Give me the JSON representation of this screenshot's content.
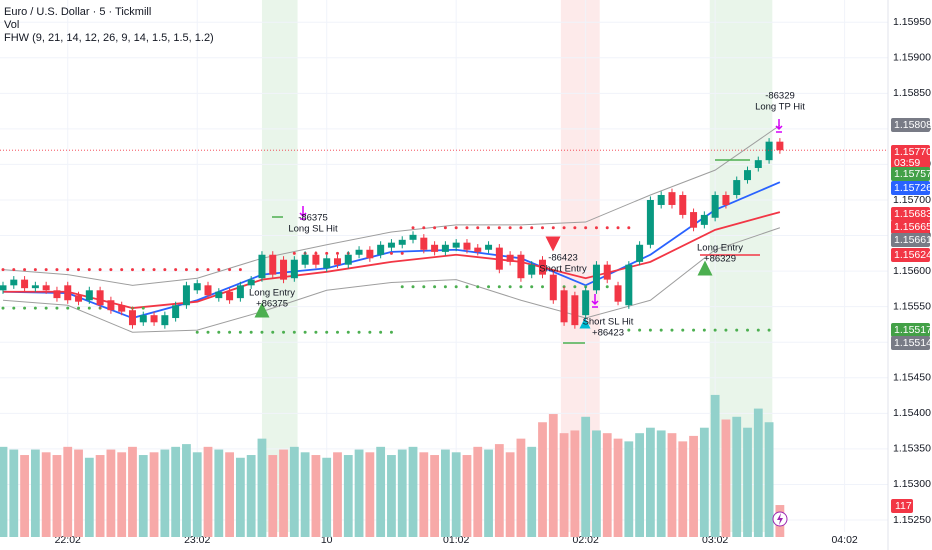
{
  "header": {
    "symbol": "Euro / U.S. Dollar · 5 · Tickmill",
    "volume_indicator": "Vol",
    "indicator": "FHW (9, 21, 14, 12, 26, 9, 14, 1.5, 1.5, 1.2)"
  },
  "chart_data": {
    "type": "candlestick",
    "categories": [
      null,
      null,
      null,
      null,
      null,
      null,
      "22:02",
      null,
      null,
      null,
      null,
      null,
      null,
      null,
      null,
      null,
      null,
      null,
      "23:02",
      null,
      null,
      null,
      null,
      null,
      null,
      null,
      null,
      null,
      null,
      null,
      "10",
      null,
      null,
      null,
      null,
      null,
      null,
      null,
      null,
      null,
      null,
      null,
      "01:02",
      null,
      null,
      null,
      null,
      null,
      null,
      null,
      null,
      null,
      null,
      null,
      "02:02",
      null,
      null,
      null,
      null,
      null,
      null,
      null,
      null,
      null,
      null,
      null,
      "03:02",
      null,
      null,
      null,
      null,
      null,
      null,
      null,
      null,
      null,
      null,
      null,
      "04:02"
    ],
    "open": [
      1.15573,
      1.1558,
      1.15588,
      1.15576,
      1.1558,
      1.15573,
      1.1558,
      1.15566,
      1.15559,
      1.15573,
      1.15559,
      1.15552,
      1.15545,
      1.15528,
      1.15538,
      1.15524,
      1.15534,
      1.15552,
      1.15573,
      1.1558,
      1.15562,
      1.15571,
      1.15562,
      1.1558,
      1.1559,
      1.15623,
      1.15616,
      1.1559,
      1.15609,
      1.15623,
      1.15604,
      1.15618,
      1.15609,
      1.15623,
      1.1563,
      1.15623,
      1.15633,
      1.15637,
      1.15644,
      1.15647,
      1.15637,
      1.15627,
      1.15633,
      1.1564,
      1.15633,
      1.1563,
      1.15633,
      1.15623,
      1.15623,
      1.15595,
      1.15616,
      1.15595,
      1.15573,
      1.15566,
      1.15538,
      1.15573,
      1.15609,
      1.1558,
      1.15552,
      1.15613,
      1.15637,
      1.15693,
      1.15711,
      1.15707,
      1.15683,
      1.15665,
      1.15675,
      1.15707,
      1.15707,
      1.15728,
      1.15745,
      1.15756,
      1.15782,
      null,
      null,
      null,
      null,
      null,
      null
    ],
    "high": [
      1.15585,
      1.15593,
      1.15593,
      1.15585,
      1.15585,
      1.15578,
      1.15585,
      1.15571,
      1.15578,
      1.15578,
      1.15564,
      1.15557,
      1.1555,
      1.15543,
      1.15543,
      1.15543,
      1.15557,
      1.15585,
      1.15588,
      1.15585,
      1.15576,
      1.15576,
      1.15585,
      1.15593,
      1.15628,
      1.15628,
      1.15621,
      1.15621,
      1.15628,
      1.15628,
      1.15623,
      1.15623,
      1.15628,
      1.15635,
      1.15635,
      1.15642,
      1.15645,
      1.15649,
      1.15656,
      1.15652,
      1.15642,
      1.15642,
      1.15645,
      1.15645,
      1.15638,
      1.15642,
      1.15638,
      1.15628,
      1.15628,
      1.15614,
      1.15621,
      1.156,
      1.15578,
      1.15571,
      1.15578,
      1.15614,
      1.15614,
      1.15585,
      1.15614,
      1.15642,
      1.15705,
      1.15712,
      1.15716,
      1.15712,
      1.15688,
      1.15684,
      1.15712,
      1.15712,
      1.15733,
      1.15747,
      1.15761,
      1.15787,
      1.15787,
      null,
      null,
      null,
      null,
      null,
      null
    ],
    "low": [
      1.15568,
      1.15575,
      1.15571,
      1.15571,
      1.15568,
      1.15557,
      1.15554,
      1.15552,
      1.15554,
      1.15547,
      1.1554,
      1.15538,
      1.15519,
      1.15523,
      1.15523,
      1.15519,
      1.15529,
      1.15547,
      1.15568,
      1.15561,
      1.15557,
      1.15554,
      1.15557,
      1.15575,
      1.15585,
      1.1559,
      1.15583,
      1.15585,
      1.15604,
      1.15604,
      1.15599,
      1.15604,
      1.15604,
      1.15618,
      1.15613,
      1.15618,
      1.15628,
      1.15632,
      1.15639,
      1.15625,
      1.15622,
      1.15622,
      1.15628,
      1.15625,
      1.15622,
      1.15625,
      1.15597,
      1.15608,
      1.15585,
      1.1559,
      1.1559,
      1.15554,
      1.15523,
      1.15519,
      1.15533,
      1.15568,
      1.15583,
      1.15552,
      1.15547,
      1.15608,
      1.15632,
      1.15688,
      1.15688,
      1.15674,
      1.15656,
      1.1566,
      1.1567,
      1.15688,
      1.15702,
      1.15723,
      1.1574,
      1.15751,
      1.15765,
      null,
      null,
      null,
      null,
      null,
      null
    ],
    "close": [
      1.1558,
      1.15588,
      1.15576,
      1.1558,
      1.15573,
      1.15562,
      1.15559,
      1.15557,
      1.15573,
      1.15552,
      1.15545,
      1.15543,
      1.15524,
      1.15538,
      1.15528,
      1.15538,
      1.15552,
      1.1558,
      1.15583,
      1.15566,
      1.15571,
      1.15559,
      1.1558,
      1.15588,
      1.15623,
      1.15595,
      1.15588,
      1.15616,
      1.15623,
      1.15609,
      1.15618,
      1.15609,
      1.15623,
      1.1563,
      1.15618,
      1.15637,
      1.1564,
      1.15644,
      1.15651,
      1.1563,
      1.15627,
      1.15637,
      1.1564,
      1.1563,
      1.15627,
      1.15637,
      1.15602,
      1.15613,
      1.1559,
      1.15609,
      1.15595,
      1.15559,
      1.15528,
      1.15524,
      1.15573,
      1.15609,
      1.15588,
      1.15557,
      1.15609,
      1.15637,
      1.157,
      1.15707,
      1.15693,
      1.15679,
      1.15661,
      1.15679,
      1.15707,
      1.15693,
      1.15728,
      1.15742,
      1.15756,
      1.15782,
      1.1577,
      null,
      null,
      null,
      null,
      null,
      null
    ],
    "volume": [
      330,
      320,
      300,
      320,
      310,
      300,
      330,
      320,
      290,
      300,
      320,
      310,
      330,
      300,
      310,
      320,
      330,
      340,
      310,
      330,
      320,
      310,
      290,
      300,
      360,
      300,
      320,
      330,
      310,
      300,
      290,
      310,
      300,
      320,
      310,
      330,
      300,
      320,
      330,
      310,
      300,
      320,
      310,
      300,
      330,
      320,
      340,
      310,
      360,
      330,
      420,
      450,
      380,
      390,
      440,
      390,
      380,
      360,
      350,
      380,
      400,
      390,
      380,
      350,
      370,
      400,
      520,
      430,
      440,
      400,
      470,
      420,
      117,
      null,
      null,
      null,
      null,
      null,
      null
    ],
    "up_color": "#089981",
    "down_color": "#f23645",
    "volume_up_color": "#92d1cb",
    "volume_down_color": "#f7a9a8",
    "ylim": [
      1.1525,
      1.1595
    ],
    "yticks": [
      {
        "value": 1.1525,
        "label": "1.15250"
      },
      {
        "value": 1.153,
        "label": "1.15300"
      },
      {
        "value": 1.1535,
        "label": "1.15350"
      },
      {
        "value": 1.154,
        "label": "1.15400"
      },
      {
        "value": 1.1545,
        "label": "1.15450"
      },
      {
        "value": 1.155,
        "label": "1.15500"
      },
      {
        "value": 1.1555,
        "label": "1.15550"
      },
      {
        "value": 1.156,
        "label": "1.15600"
      },
      {
        "value": 1.1565,
        "label": "1.15650"
      },
      {
        "value": 1.157,
        "label": "1.15700"
      },
      {
        "value": 1.1575,
        "label": "1.15750"
      },
      {
        "value": 1.158,
        "label": "1.15800"
      },
      {
        "value": 1.1585,
        "label": "1.15850"
      },
      {
        "value": 1.159,
        "label": "1.15900"
      },
      {
        "value": 1.1595,
        "label": "1.15950"
      }
    ],
    "grid": true,
    "series": [
      {
        "color": "#2962ff",
        "x": [
          0,
          6,
          12,
          18,
          24,
          30,
          36,
          42,
          48,
          54,
          60,
          66,
          72
        ],
        "values": [
          1.15571,
          1.15569,
          1.15534,
          1.15559,
          1.15595,
          1.15604,
          1.15627,
          1.1563,
          1.15618,
          1.1558,
          1.15623,
          1.15686,
          1.15725
        ]
      },
      {
        "color": "#f23645",
        "x": [
          0,
          6,
          12,
          18,
          24,
          30,
          36,
          42,
          48,
          54,
          60,
          66,
          72
        ],
        "values": [
          1.15571,
          1.15571,
          1.15548,
          1.15557,
          1.15588,
          1.15599,
          1.15613,
          1.15623,
          1.15613,
          1.1559,
          1.15613,
          1.15658,
          1.15683
        ]
      },
      {
        "color": "#9e9e9e",
        "x": [
          0,
          6,
          12,
          18,
          24,
          30,
          36,
          42,
          48,
          54,
          60,
          66,
          72
        ],
        "values": [
          1.15602,
          1.15595,
          1.1558,
          1.1559,
          1.15618,
          1.15637,
          1.15655,
          1.15665,
          1.15665,
          1.15669,
          1.15707,
          1.15742,
          1.15805
        ]
      },
      {
        "color": "#9e9e9e",
        "x": [
          0,
          6,
          12,
          18,
          24,
          30,
          36,
          42,
          48,
          54,
          60,
          66,
          72
        ],
        "values": [
          1.15559,
          1.15552,
          1.15514,
          1.15517,
          1.15543,
          1.15573,
          1.15584,
          1.15588,
          1.15559,
          1.15534,
          1.15559,
          1.1563,
          1.15661
        ]
      }
    ],
    "levels": [
      {
        "x": [
          0,
          23
        ],
        "value": 1.15602,
        "color": "#f23645"
      },
      {
        "x": [
          27,
          37
        ],
        "value": 1.15625,
        "color": "#f23645"
      },
      {
        "x": [
          38,
          58
        ],
        "value": 1.15661,
        "color": "#f23645"
      },
      {
        "x": [
          0,
          14
        ],
        "value": 1.15548,
        "color": "#4caf50"
      },
      {
        "x": [
          18,
          36
        ],
        "value": 1.15514,
        "color": "#4caf50"
      },
      {
        "x": [
          37,
          57
        ],
        "value": 1.15578,
        "color": "#4caf50"
      },
      {
        "x": [
          58,
          71
        ],
        "value": 1.15517,
        "color": "#4caf50"
      }
    ],
    "sessions": [
      {
        "x": [
          24,
          27.3
        ],
        "color": "#e9f5ea"
      },
      {
        "x": [
          51.7,
          55.3
        ],
        "color": "#fdeaea"
      },
      {
        "x": [
          65.5,
          71.3
        ],
        "color": "#e9f5ea"
      }
    ],
    "annotations": [
      [
        "Long Entry",
        "+86375"
      ],
      [
        "-86375",
        "Long SL Hit"
      ],
      [
        "-86423",
        "Short Entry"
      ],
      [
        "Short SL Hit",
        "+86423"
      ],
      [
        "Long Entry",
        "+86329"
      ],
      [
        "-86329",
        "Long TP Hit"
      ]
    ],
    "price_labels": [
      {
        "value": 1.15808,
        "label": "1.15808",
        "color": "#787b86"
      },
      {
        "value": 1.1577,
        "label": "1.15770",
        "color": "#f23645"
      },
      {
        "value": 1.15757,
        "label": "1.15757",
        "color": "#43a047"
      },
      {
        "value": 1.15726,
        "label": "1.15726",
        "color": "#2962ff"
      },
      {
        "value": 1.15683,
        "label": "1.15683",
        "color": "#f23645"
      },
      {
        "value": 1.15665,
        "label": "1.15665",
        "color": "#f23645"
      },
      {
        "value": 1.15661,
        "label": "1.15661",
        "color": "#787b86"
      },
      {
        "value": 1.15624,
        "label": "1.15624",
        "color": "#f23645"
      },
      {
        "value": 1.15517,
        "label": "1.15517",
        "color": "#43a047"
      },
      {
        "value": 1.15514,
        "label": "1.15514",
        "color": "#787b86"
      }
    ],
    "countdown": "03:59"
  }
}
